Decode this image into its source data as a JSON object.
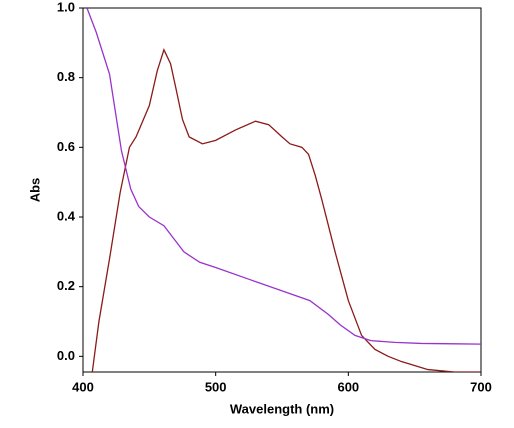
{
  "chart_data": {
    "type": "line",
    "x_label": "Wavelength (nm)",
    "y_label": "Abs",
    "xlim": [
      400,
      700
    ],
    "xticks": [
      400,
      500,
      600,
      700
    ],
    "ylim": [
      -0.045,
      1.0
    ],
    "yticks": [
      {
        "value": 0,
        "label": "0.0"
      },
      0.2,
      0.4,
      0.6,
      0.8,
      {
        "value": 1,
        "label": "1.0"
      }
    ],
    "series": [
      {
        "color": "#8b1a1a",
        "x": [
          407,
          412,
          420,
          428,
          435,
          440,
          450,
          456,
          461,
          466,
          470,
          475,
          480,
          490,
          500,
          515,
          530,
          540,
          550,
          556,
          565,
          570,
          575,
          580,
          590,
          600,
          610,
          620,
          630,
          640,
          660,
          680,
          700
        ],
        "values": [
          -0.045,
          0.1,
          0.28,
          0.47,
          0.6,
          0.63,
          0.72,
          0.82,
          0.88,
          0.84,
          0.77,
          0.68,
          0.63,
          0.61,
          0.62,
          0.65,
          0.675,
          0.665,
          0.63,
          0.61,
          0.6,
          0.58,
          0.52,
          0.45,
          0.3,
          0.16,
          0.06,
          0.02,
          0.0,
          -0.015,
          -0.038,
          -0.045,
          -0.045
        ]
      },
      {
        "color": "#9933cc",
        "x": [
          403,
          410,
          420,
          429,
          436,
          442,
          450,
          461,
          468,
          476,
          488,
          500,
          526,
          556,
          571,
          585,
          594,
          605,
          617,
          635,
          655,
          680,
          700
        ],
        "values": [
          1.0,
          0.93,
          0.81,
          0.59,
          0.48,
          0.43,
          0.4,
          0.375,
          0.34,
          0.3,
          0.27,
          0.255,
          0.22,
          0.18,
          0.16,
          0.12,
          0.09,
          0.06,
          0.045,
          0.04,
          0.037,
          0.036,
          0.035
        ]
      }
    ]
  }
}
